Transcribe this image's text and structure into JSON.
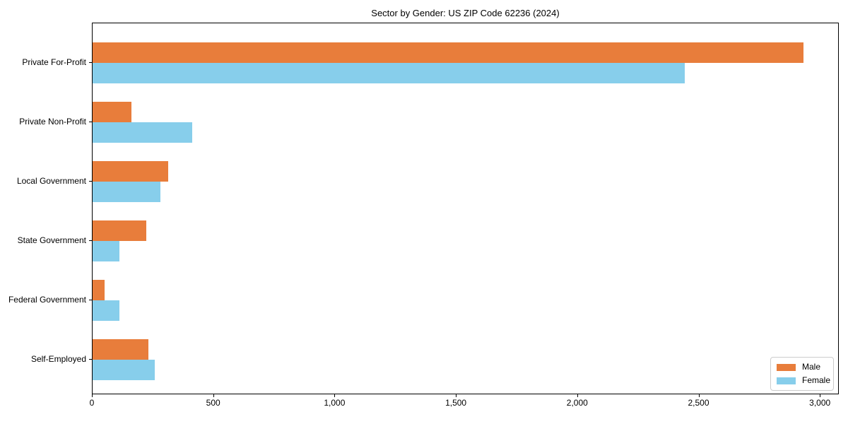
{
  "title": "Sector by Gender: US ZIP Code 62236 (2024)",
  "chart_data": {
    "type": "bar",
    "orientation": "horizontal",
    "title": "Sector by Gender: US ZIP Code 62236 (2024)",
    "categories": [
      "Private For-Profit",
      "Private Non-Profit",
      "Local Government",
      "State Government",
      "Federal Government",
      "Self-Employed"
    ],
    "series": [
      {
        "name": "Male",
        "color": "#E87D3B",
        "values": [
          2930,
          160,
          310,
          220,
          50,
          230
        ]
      },
      {
        "name": "Female",
        "color": "#87CEEB",
        "values": [
          2440,
          410,
          280,
          110,
          110,
          255
        ]
      }
    ],
    "xlabel": "",
    "ylabel": "",
    "xlim": [
      0,
      3078
    ],
    "xticks": [
      0,
      500,
      1000,
      1500,
      2000,
      2500,
      3000
    ],
    "xtick_labels": [
      "0",
      "500",
      "1,000",
      "1,500",
      "2,000",
      "2,500",
      "3,000"
    ],
    "legend": {
      "position": "lower right",
      "entries": [
        "Male",
        "Female"
      ]
    },
    "grid": false,
    "background": "#ffffff"
  }
}
